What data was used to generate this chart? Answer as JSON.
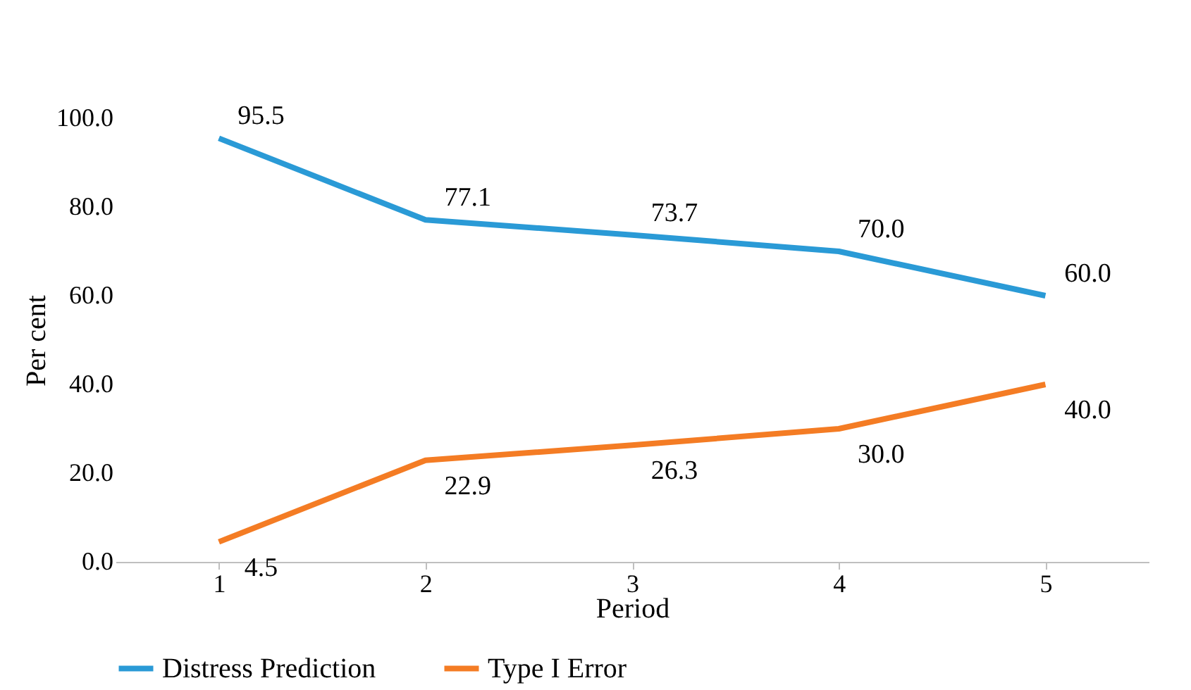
{
  "chart_data": {
    "type": "line",
    "xlabel": "Period",
    "ylabel": "Per cent",
    "categories": [
      "1",
      "2",
      "3",
      "4",
      "5"
    ],
    "series": [
      {
        "name": "Distress Prediction",
        "color": "#2a9ad6",
        "values": [
          95.5,
          77.1,
          73.7,
          70.0,
          60.0
        ],
        "value_labels": [
          "95.5",
          "77.1",
          "73.7",
          "70.0",
          "60.0"
        ]
      },
      {
        "name": "Type I Error",
        "color": "#f47c24",
        "values": [
          4.5,
          22.9,
          26.3,
          30.0,
          40.0
        ],
        "value_labels": [
          "4.5",
          "22.9",
          "26.3",
          "30.0",
          "40.0"
        ]
      }
    ],
    "ylim": [
      0,
      100
    ],
    "yticks": [
      {
        "value": 0,
        "label": "0.0"
      },
      {
        "value": 20,
        "label": "20.0"
      },
      {
        "value": 40,
        "label": "40.0"
      },
      {
        "value": 60,
        "label": "60.0"
      },
      {
        "value": 80,
        "label": "80.0"
      },
      {
        "value": 100,
        "label": "100.0"
      }
    ],
    "grid": false,
    "legend": "bottom",
    "marker": "none",
    "line_style": "solid"
  }
}
